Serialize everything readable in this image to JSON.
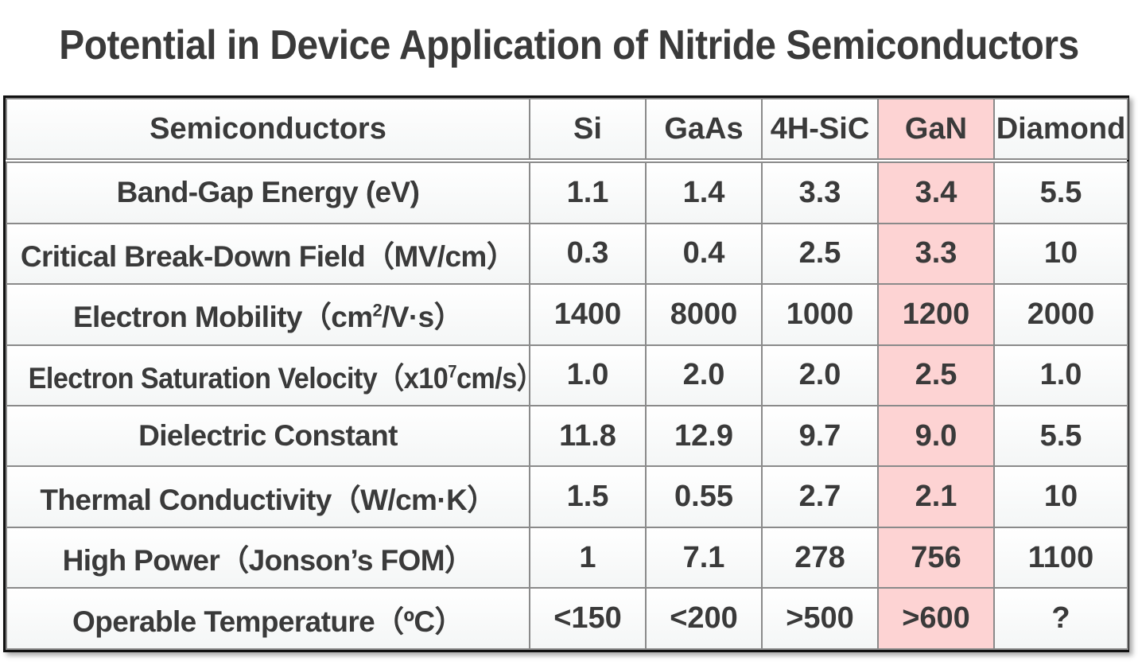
{
  "title": "Potential in Device Application of Nitride Semiconductors",
  "table": {
    "header_label": "Semiconductors",
    "columns": [
      "Si",
      "GaAs",
      "4H-SiC",
      "GaN",
      "Diamond"
    ],
    "highlight_color": "#fdd3d3",
    "rows": [
      {
        "label_pre": "Band-Gap Energy (eV)",
        "label_sup": "",
        "label_post": "",
        "values": [
          "1.1",
          "1.4",
          "3.3",
          "3.4",
          "5.5"
        ]
      },
      {
        "label_pre": "Critical Break-Down Field（MV/cm）",
        "label_sup": "",
        "label_post": "",
        "values": [
          "0.3",
          "0.4",
          "2.5",
          "3.3",
          "10"
        ]
      },
      {
        "label_pre": "Electron Mobility（cm",
        "label_sup": "2",
        "label_post": "/V·s）",
        "values": [
          "1400",
          "8000",
          "1000",
          "1200",
          "2000"
        ]
      },
      {
        "label_pre": "Electron Saturation Velocity（x10",
        "label_sup": "7",
        "label_post": "cm/s）",
        "values": [
          "1.0",
          "2.0",
          "2.0",
          "2.5",
          "1.0"
        ]
      },
      {
        "label_pre": "Dielectric Constant",
        "label_sup": "",
        "label_post": "",
        "values": [
          "11.8",
          "12.9",
          "9.7",
          "9.0",
          "5.5"
        ]
      },
      {
        "label_pre": "Thermal Conductivity（W/cm·K）",
        "label_sup": "",
        "label_post": "",
        "values": [
          "1.5",
          "0.55",
          "2.7",
          "2.1",
          "10"
        ]
      },
      {
        "label_pre": "High Power（Jonson’s FOM）",
        "label_sup": "",
        "label_post": "",
        "values": [
          "1",
          "7.1",
          "278",
          "756",
          "1100"
        ]
      },
      {
        "label_pre": "Operable Temperature（ºC）",
        "label_sup": "",
        "label_post": "",
        "values": [
          "<150",
          "<200",
          ">500",
          ">600",
          "?"
        ]
      }
    ]
  }
}
